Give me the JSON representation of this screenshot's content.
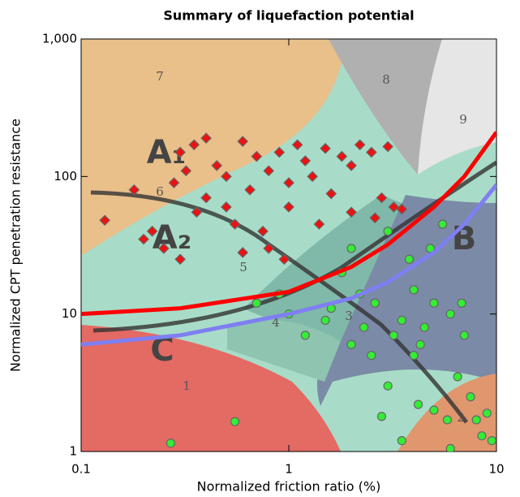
{
  "chart_data": {
    "type": "scatter",
    "title": "Summary of liquefaction potential",
    "xlabel": "Normalized friction ratio (%)",
    "ylabel": "Normalized CPT penetration resistance",
    "xscale": "log",
    "yscale": "log",
    "xlim": [
      0.1,
      10
    ],
    "ylim": [
      1,
      1000
    ],
    "xticks": [
      0.1,
      1,
      10
    ],
    "yticks": [
      1,
      10,
      100,
      {
        "value": 1000,
        "label": "1,000"
      }
    ],
    "annotations": [
      "7",
      "8",
      "9",
      "6",
      "5",
      "4",
      "3",
      "2",
      "1",
      "A₁",
      "A₂",
      "B",
      "C"
    ],
    "lines": [
      {
        "color": "#ff0000",
        "x": [
          0.1,
          0.3,
          1,
          2,
          3,
          5,
          7,
          10
        ],
        "values": [
          10,
          11,
          14.5,
          22,
          32,
          60,
          100,
          210
        ]
      },
      {
        "color": "#7f7ff2",
        "x": [
          0.1,
          0.3,
          1,
          2,
          3,
          5,
          7,
          10
        ],
        "values": [
          6,
          7,
          10,
          13,
          17,
          28,
          45,
          87
        ]
      }
    ],
    "series": [
      {
        "color": "#ee1111",
        "marker": "diamond",
        "x": [
          0.13,
          0.18,
          0.2,
          0.22,
          0.25,
          0.3,
          0.3,
          0.35,
          0.4,
          0.45,
          0.5,
          0.5,
          0.55,
          0.6,
          0.65,
          0.7,
          0.75,
          0.8,
          0.8,
          0.9,
          1.0,
          1.0,
          1.1,
          1.2,
          1.3,
          1.5,
          1.6,
          1.8,
          2.0,
          2.0,
          2.2,
          2.5,
          2.6,
          3.0,
          3.2,
          0.28,
          0.4,
          0.6,
          0.36,
          0.95,
          1.4,
          2.8,
          3.5,
          0.32
        ],
        "values": [
          48,
          80,
          35,
          40,
          30,
          25,
          150,
          170,
          190,
          120,
          100,
          60,
          45,
          180,
          80,
          140,
          40,
          30,
          110,
          150,
          90,
          60,
          170,
          130,
          100,
          160,
          75,
          140,
          55,
          120,
          170,
          150,
          50,
          165,
          60,
          90,
          70,
          28,
          55,
          25,
          45,
          70,
          58,
          110
        ]
      },
      {
        "color": "#33ee33",
        "marker": "circle",
        "x": [
          0.27,
          0.55,
          0.7,
          0.9,
          1.0,
          1.2,
          1.5,
          1.8,
          2.0,
          2.0,
          2.3,
          2.5,
          2.6,
          3.0,
          3.0,
          3.2,
          3.5,
          3.5,
          3.8,
          4.0,
          4.0,
          4.2,
          4.5,
          4.8,
          5.0,
          5.0,
          5.5,
          5.8,
          6.0,
          6.0,
          6.5,
          7.0,
          7.5,
          8.0,
          8.5,
          9.0,
          9.5,
          2.8,
          1.6,
          4.3,
          2.2,
          6.8
        ],
        "values": [
          1.15,
          1.65,
          12,
          14,
          10,
          7,
          9,
          20,
          6,
          30,
          8,
          5,
          12,
          40,
          3,
          7,
          9,
          1.2,
          25,
          5,
          15,
          2.2,
          8,
          30,
          12,
          2,
          45,
          1.7,
          10,
          1.05,
          3.5,
          7,
          2.5,
          1.7,
          1.3,
          1.9,
          1.2,
          1.8,
          11,
          6,
          14,
          12
        ]
      }
    ]
  }
}
